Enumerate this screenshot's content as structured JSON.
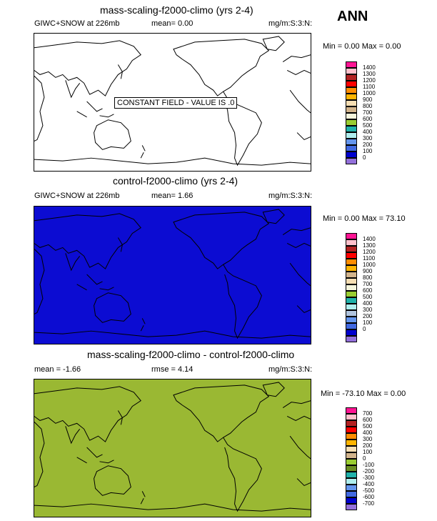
{
  "annual_label": "ANN",
  "panels": [
    {
      "title": "mass-scaling-f2000-climo (yrs 2-4)",
      "left_text": "GIWC+SNOW at 226mb",
      "mid_text": "mean=   0.00",
      "units": "mg/m:S:3:N:",
      "minmax": "Min =  0.00 Max =  0.00",
      "fill": "#ffffff",
      "constant_label": "CONSTANT FIELD - VALUE IS .0",
      "legend": {
        "colors": [
          "#ff1493",
          "#ffc0cb",
          "#b22222",
          "#ff0000",
          "#ff8c00",
          "#ffb400",
          "#f5deb3",
          "#d2b48c",
          "#f5f5dc",
          "#9acd32",
          "#20b2aa",
          "#afeeee",
          "#6495ed",
          "#4169e1",
          "#0000cd",
          "#9370db"
        ],
        "labels": [
          "1400",
          "1300",
          "1200",
          "1100",
          "1000",
          "900",
          "800",
          "700",
          "600",
          "500",
          "400",
          "300",
          "200",
          "100",
          "0"
        ]
      }
    },
    {
      "title": "control-f2000-climo (yrs 2-4)",
      "left_text": "GIWC+SNOW at 226mb",
      "mid_text": "mean=   1.66",
      "units": "mg/m:S:3:N:",
      "minmax": "Min =  0.00 Max = 73.10",
      "fill": "#0c0cd2",
      "constant_label": "",
      "legend": {
        "colors": [
          "#ff1493",
          "#ffc0cb",
          "#b22222",
          "#ff0000",
          "#ff8c00",
          "#ffb400",
          "#d2b48c",
          "#f5deb3",
          "#f5f5dc",
          "#9acd32",
          "#20b2aa",
          "#afeeee",
          "#b0c4de",
          "#6495ed",
          "#4169e1",
          "#0000cd",
          "#9370db"
        ],
        "labels": [
          "1400",
          "1300",
          "1200",
          "1100",
          "1000",
          "900",
          "800",
          "700",
          "600",
          "500",
          "400",
          "300",
          "200",
          "100",
          "0"
        ]
      }
    },
    {
      "title": "mass-scaling-f2000-climo - control-f2000-climo",
      "left_text": "mean =  -1.66",
      "mid_text": "rmse =   4.14",
      "units": "mg/m:S:3:N:",
      "minmax": "Min = -73.10 Max =  0.00",
      "fill": "#9ab833",
      "constant_label": "",
      "legend": {
        "colors": [
          "#ff1493",
          "#ffc0cb",
          "#b22222",
          "#ff0000",
          "#ff8c00",
          "#ffb400",
          "#f5deb3",
          "#d2b48c",
          "#9acd32",
          "#6b8e23",
          "#20b2aa",
          "#afeeee",
          "#6495ed",
          "#4169e1",
          "#0000cd",
          "#9370db"
        ],
        "labels": [
          "700",
          "600",
          "500",
          "400",
          "300",
          "200",
          "100",
          "0",
          "-100",
          "-200",
          "-300",
          "-400",
          "-500",
          "-600",
          "-700"
        ]
      }
    }
  ]
}
